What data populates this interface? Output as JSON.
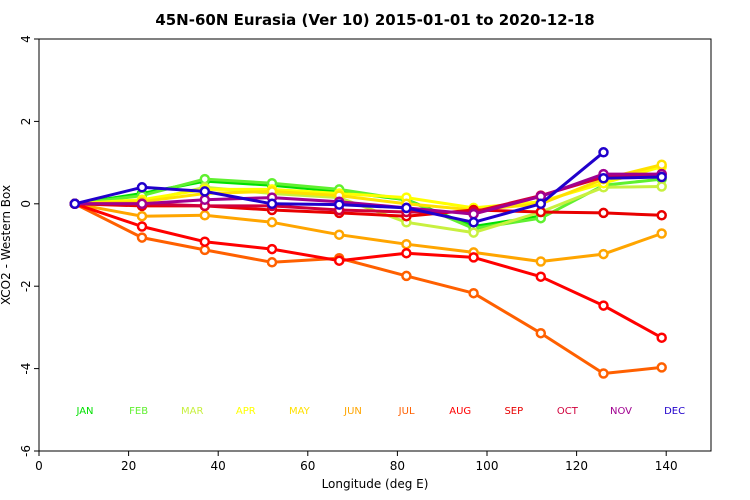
{
  "chart_data": {
    "type": "line",
    "title": "45N-60N Eurasia (Ver 10)   2015-01-01 to 2020-12-18",
    "xlabel": "Longitude (deg E)",
    "ylabel": "XCO2 - Western Box",
    "xlim": [
      0,
      150
    ],
    "ylim": [
      -6,
      4
    ],
    "xticks": [
      0,
      20,
      40,
      60,
      80,
      100,
      120,
      140
    ],
    "yticks": [
      -6,
      -4,
      -2,
      0,
      2,
      4
    ],
    "x": [
      8,
      23,
      37,
      52,
      67,
      82,
      97,
      112,
      126,
      139
    ],
    "legend_y": -5,
    "series": [
      {
        "name": "JAN",
        "color": "#00e000",
        "values": [
          0,
          0.25,
          0.55,
          0.45,
          0.3,
          0.1,
          -0.55,
          -0.3,
          null,
          null
        ]
      },
      {
        "name": "FEB",
        "color": "#60f030",
        "values": [
          0,
          0.2,
          0.6,
          0.5,
          0.35,
          0.1,
          -0.6,
          -0.35,
          0.45,
          0.6
        ]
      },
      {
        "name": "MAR",
        "color": "#c8f040",
        "values": [
          0,
          0.05,
          0.4,
          0.25,
          0.15,
          -0.45,
          -0.7,
          -0.2,
          0.4,
          0.42
        ]
      },
      {
        "name": "APR",
        "color": "#ffff00",
        "values": [
          0,
          0.1,
          0.35,
          0.35,
          0.25,
          0.15,
          -0.1,
          0.05,
          0.5,
          0.9
        ]
      },
      {
        "name": "MAY",
        "color": "#ffe000",
        "values": [
          0,
          0.05,
          0.25,
          0.3,
          0.2,
          0.0,
          -0.15,
          0.0,
          0.6,
          0.95
        ]
      },
      {
        "name": "JUN",
        "color": "#ffa500",
        "values": [
          0,
          -0.3,
          -0.28,
          -0.45,
          -0.75,
          -0.98,
          -1.18,
          -1.4,
          -1.22,
          -0.72
        ]
      },
      {
        "name": "JUL",
        "color": "#ff6000",
        "values": [
          0,
          -0.82,
          -1.12,
          -1.42,
          -1.32,
          -1.75,
          -2.17,
          -3.14,
          -4.12,
          -3.97
        ]
      },
      {
        "name": "AUG",
        "color": "#ff0000",
        "values": [
          0,
          -0.55,
          -0.92,
          -1.1,
          -1.38,
          -1.2,
          -1.3,
          -1.77,
          -2.47,
          -3.25
        ]
      },
      {
        "name": "SEP",
        "color": "#e80000",
        "values": [
          0,
          -0.05,
          -0.05,
          -0.15,
          -0.22,
          -0.3,
          -0.15,
          -0.2,
          -0.22,
          -0.28
        ]
      },
      {
        "name": "OCT",
        "color": "#d0003c",
        "values": [
          0,
          0.0,
          -0.05,
          -0.05,
          -0.15,
          -0.2,
          -0.2,
          0.2,
          0.65,
          0.72
        ]
      },
      {
        "name": "NOV",
        "color": "#a00090",
        "values": [
          0,
          0.0,
          0.1,
          0.15,
          0.05,
          -0.1,
          -0.25,
          0.18,
          0.72,
          0.72
        ]
      },
      {
        "name": "DEC",
        "color": "#2000cc",
        "values": [
          0,
          0.4,
          0.3,
          0.0,
          -0.02,
          -0.1,
          -0.45,
          0.0,
          1.25,
          null
        ]
      },
      {
        "name": "",
        "color": "#2000cc",
        "values": [
          null,
          null,
          null,
          null,
          null,
          null,
          null,
          null,
          0.62,
          0.65
        ]
      }
    ]
  }
}
